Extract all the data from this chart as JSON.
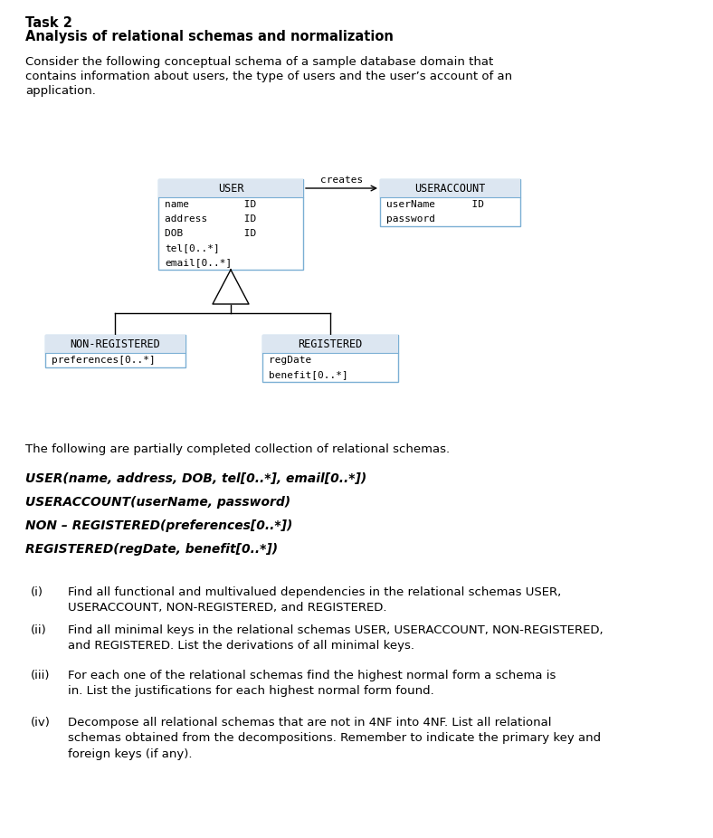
{
  "title_line1": "Task 2",
  "title_line2": "Analysis of relational schemas and normalization",
  "intro_text1": "Consider the following conceptual schema of a sample database domain that",
  "intro_text2": "contains information about users, the type of users and the user’s account of an",
  "intro_text3": "application.",
  "schema_text_line": "The following are partially completed collection of relational schemas.",
  "schema_lines": [
    "USER(name, address, DOB, tel[0..*], email[0..*])",
    "USERACCOUNT(userName, password)",
    "NON – REGISTERED(preferences[0..*])",
    "REGISTERED(regDate, benefit[0..*])"
  ],
  "questions": [
    [
      "(i)",
      "Find all functional and multivalued dependencies in the relational schemas USER, USERACCOUNT, NON-REGISTERED, and REGISTERED."
    ],
    [
      "(ii)",
      "Find all minimal keys in the relational schemas USER, USERACCOUNT, NON-REGISTERED, and REGISTERED. List the derivations of all minimal keys."
    ],
    [
      "(iii)",
      "For each one of the relational schemas find the highest normal form a schema is in. List the justifications for each highest normal form found."
    ],
    [
      "(iv)",
      "Decompose all relational schemas that are not in 4NF into 4NF. List all relational schemas obtained from the decompositions. Remember to indicate the primary key and foreign keys (if any)."
    ]
  ],
  "user_box_title": "USER",
  "user_box_attrs": [
    "name         ID",
    "address      ID",
    "DOB          ID",
    "tel[0..*]",
    "email[0..*]"
  ],
  "ua_box_title": "USERACCOUNT",
  "ua_box_attrs": [
    "userName      ID",
    "password"
  ],
  "nr_box_title": "NON-REGISTERED",
  "nr_box_attrs": [
    "preferences[0..*]"
  ],
  "reg_box_title": "REGISTERED",
  "reg_box_attrs": [
    "regDate",
    "benefit[0..*]"
  ],
  "bg_color": "#ffffff",
  "box_border_color": "#7bafd4",
  "box_title_bg": "#dce6f1",
  "text_color": "#000000"
}
